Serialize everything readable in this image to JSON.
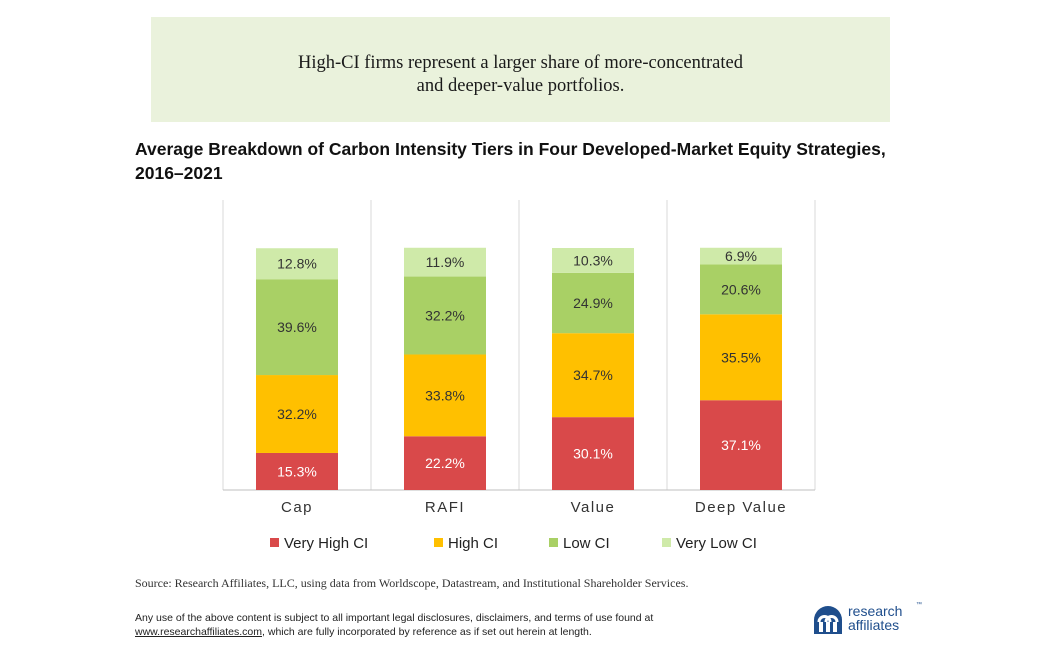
{
  "callout": {
    "text": "High-CI firms represent a larger share of more-concentrated\nand deeper-value portfolios."
  },
  "chart_data": {
    "type": "bar",
    "stacked": true,
    "title": "Average Breakdown of Carbon Intensity Tiers in Four Developed-Market Equity Strategies, 2016–2021",
    "categories": [
      "Cap",
      "RAFI",
      "Value",
      "Deep Value"
    ],
    "series": [
      {
        "name": "Very High CI",
        "color": "#d9494a",
        "values": [
          15.3,
          22.2,
          30.1,
          37.1
        ],
        "labels": [
          "15.3%",
          "22.2%",
          "30.1%",
          "37.1%"
        ]
      },
      {
        "name": "High CI",
        "color": "#ffc000",
        "values": [
          32.2,
          33.8,
          34.7,
          35.5
        ],
        "labels": [
          "32.2%",
          "33.8%",
          "34.7%",
          "35.5%"
        ]
      },
      {
        "name": "Low CI",
        "color": "#a9d065",
        "values": [
          39.6,
          32.2,
          24.9,
          20.6
        ],
        "labels": [
          "39.6%",
          "32.2%",
          "24.9%",
          "20.6%"
        ]
      },
      {
        "name": "Very Low CI",
        "color": "#cfeaa9",
        "values": [
          12.8,
          11.9,
          10.3,
          6.9
        ],
        "labels": [
          "12.8%",
          "11.9%",
          "10.3%",
          "6.9%"
        ]
      }
    ],
    "ylim": [
      0,
      100
    ],
    "grid": false,
    "legend": "bottom"
  },
  "footer": {
    "source": "Source: Research Affiliates, LLC, using data from Worldscope, Datastream, and Institutional Shareholder Services.",
    "disclaimer_line1": "Any use of the above content is subject to all important legal disclosures, disclaimers, and terms of use found at",
    "disclaimer_link": "www.researchaffiliates.com",
    "disclaimer_line2_rest": ", which are fully incorporated by reference as if set out herein at length."
  },
  "logo": {
    "line1": "research",
    "line2": "affiliates",
    "tm": "™",
    "color": "#1f4e8c"
  }
}
